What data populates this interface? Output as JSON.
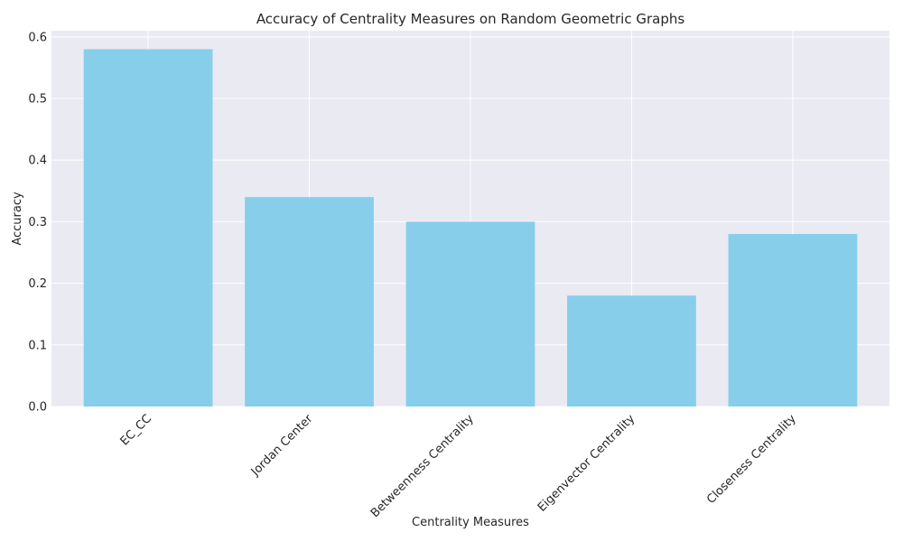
{
  "chart_data": {
    "type": "bar",
    "title": "Accuracy of Centrality Measures on Random Geometric Graphs",
    "xlabel": "Centrality Measures",
    "ylabel": "Accuracy",
    "categories": [
      "EC_CC",
      "Jordan Center",
      "Betweenness Centrality",
      "Eigenvector Centrality",
      "Closeness Centrality"
    ],
    "values": [
      0.58,
      0.34,
      0.3,
      0.18,
      0.28
    ],
    "ylim": [
      0,
      0.61
    ],
    "yticks": [
      "0.0",
      "0.1",
      "0.2",
      "0.3",
      "0.4",
      "0.5",
      "0.6"
    ],
    "grid": true,
    "legend": "none",
    "colors": {
      "bar": "#87ceeb",
      "plot_background": "#eaeaf2",
      "grid": "#ffffff",
      "text": "#262626"
    }
  }
}
